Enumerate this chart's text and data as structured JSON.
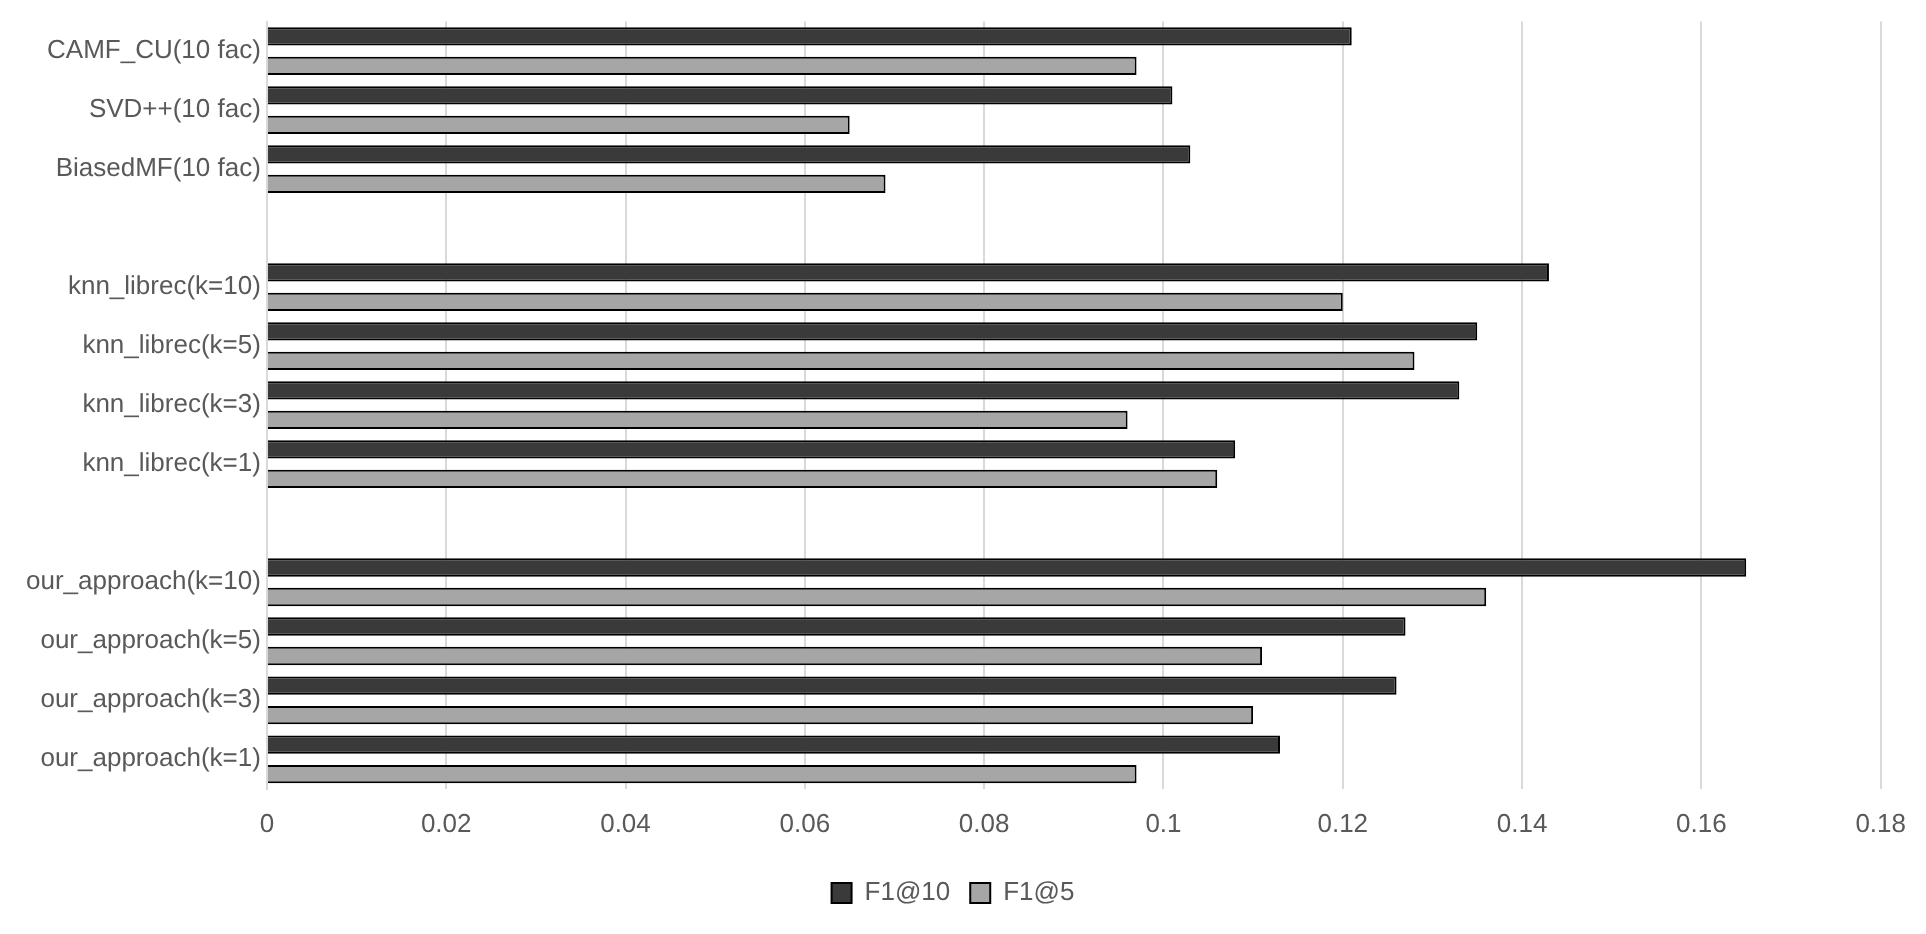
{
  "chart_data": {
    "type": "bar",
    "orientation": "horizontal",
    "categories": [
      "CAMF_CU(10 fac)",
      "SVD++(10 fac)",
      "BiasedMF(10 fac)",
      null,
      "knn_librec(k=10)",
      "knn_librec(k=5)",
      "knn_librec(k=3)",
      "knn_librec(k=1)",
      null,
      "our_approach(k=10)",
      "our_approach(k=5)",
      "our_approach(k=3)",
      "our_approach(k=1)"
    ],
    "series": [
      {
        "name": "F1@10",
        "color": "#3a3a3a",
        "values": [
          0.121,
          0.101,
          0.103,
          null,
          0.143,
          0.135,
          0.133,
          0.108,
          null,
          0.165,
          0.127,
          0.126,
          0.113
        ]
      },
      {
        "name": "F1@5",
        "color": "#a6a6a6",
        "values": [
          0.097,
          0.065,
          0.069,
          null,
          0.12,
          0.128,
          0.096,
          0.106,
          null,
          0.136,
          0.111,
          0.11,
          0.097
        ]
      }
    ],
    "xlim": [
      0,
      0.18
    ],
    "xticks": [
      0,
      0.02,
      0.04,
      0.06,
      0.08,
      0.1,
      0.12,
      0.14,
      0.16,
      0.18
    ],
    "grid": "x",
    "legend": "bottom"
  }
}
